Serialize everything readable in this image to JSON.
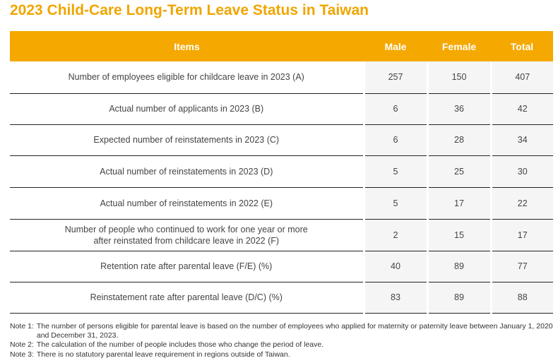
{
  "title": "2023 Child-Care Long-Term Leave Status in Taiwan",
  "table": {
    "headers": [
      "Items",
      "Male",
      "Female",
      "Total"
    ],
    "rows": [
      {
        "item": "Number of employees eligible for childcare leave in 2023 (A)",
        "male": "257",
        "female": "150",
        "total": "407"
      },
      {
        "item": "Actual number of applicants in 2023 (B)",
        "male": "6",
        "female": "36",
        "total": "42"
      },
      {
        "item": "Expected number of reinstatements in 2023 (C)",
        "male": "6",
        "female": "28",
        "total": "34"
      },
      {
        "item": "Actual number of reinstatements in 2023 (D)",
        "male": "5",
        "female": "25",
        "total": "30"
      },
      {
        "item": "Actual number of reinstatements in 2022 (E)",
        "male": "5",
        "female": "17",
        "total": "22"
      },
      {
        "item_line1": "Number of people who continued to work for one year or more",
        "item_line2": "after reinstated from childcare leave in 2022 (F)",
        "male": "2",
        "female": "15",
        "total": "17"
      },
      {
        "item": "Retention rate after parental leave (F/E) (%)",
        "male": "40",
        "female": "89",
        "total": "77"
      },
      {
        "item": "Reinstatement rate after parental leave (D/C) (%)",
        "male": "83",
        "female": "89",
        "total": "88"
      }
    ]
  },
  "notes": [
    {
      "label": "Note 1:",
      "text": "The number of persons eligible for parental leave is based on the number of employees who applied for maternity or paternity leave between January 1, 2020 and December 31, 2023."
    },
    {
      "label": "Note 2:",
      "text": "The calculation of the number of people includes those who change the period of leave."
    },
    {
      "label": "Note 3:",
      "text": "There is no statutory parental leave requirement in regions outside of Taiwan."
    }
  ]
}
